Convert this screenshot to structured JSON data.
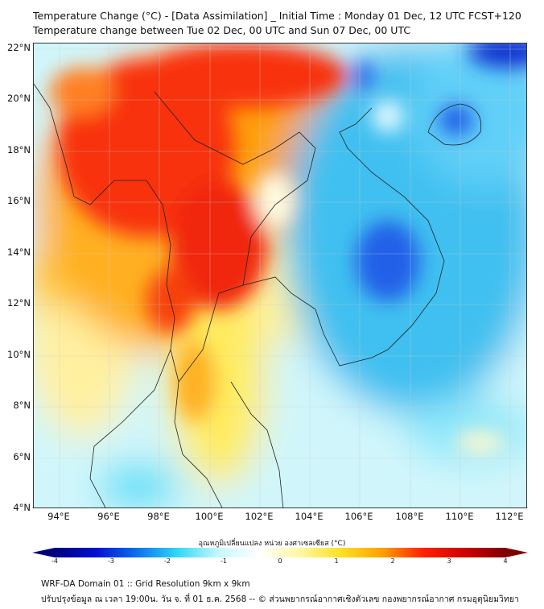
{
  "title": {
    "line1": "Temperature Change (°C) - [Data Assimilation] _ Initial Time : Monday 01 Dec, 12 UTC FCST+120",
    "line2": "Temperature change between Tue 02 Dec, 00 UTC and Sun 07 Dec, 00 UTC"
  },
  "map": {
    "lat_ticks": [
      "22°N",
      "20°N",
      "18°N",
      "16°N",
      "14°N",
      "12°N",
      "10°N",
      "8°N",
      "6°N",
      "4°N"
    ],
    "lon_ticks": [
      "94°E",
      "96°E",
      "98°E",
      "100°E",
      "102°E",
      "104°E",
      "106°E",
      "108°E",
      "110°E",
      "112°E"
    ]
  },
  "colorbar": {
    "label": "อุณหภูมิเปลี่ยนแปลง หน่วย องศาเซลเซียส (°C)",
    "ticks": [
      "-4",
      "-3",
      "-2",
      "-1",
      "0",
      "1",
      "2",
      "3",
      "4"
    ],
    "range": [
      -4,
      4
    ],
    "colors": [
      "#00007f",
      "#0010d0",
      "#0a70f0",
      "#30d8f8",
      "#c8f8ff",
      "#ffffff",
      "#fff8a0",
      "#ffe020",
      "#ffa000",
      "#ff2000",
      "#d00000",
      "#7f0000"
    ]
  },
  "footer": {
    "line1": "WRF-DA Domain 01 :: Grid Resolution 9km x 9km",
    "line2": "ปรับปรุงข้อมูล ณ เวลา 19:00น. วัน จ. ที่ 01 ธ.ค. 2568 -- © ส่วนพยากรณ์อากาศเชิงตัวเลข กองพยากรณ์อากาศ กรมอุตุนิยมวิทยา"
  }
}
